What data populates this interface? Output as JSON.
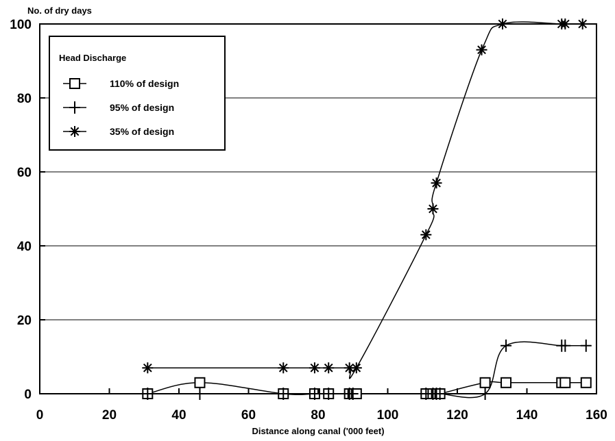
{
  "chart_data": {
    "type": "line",
    "title": "",
    "ylabel": "No. of dry days",
    "xlabel": "Distance along canal ('000 feet)",
    "xlim": [
      0,
      160
    ],
    "ylim": [
      0,
      100
    ],
    "x_ticks": [
      "0",
      "20",
      "40",
      "60",
      "80",
      "100",
      "120",
      "140",
      "160"
    ],
    "y_ticks": [
      "0",
      "20",
      "40",
      "60",
      "80",
      "100"
    ],
    "grid": "horizontal",
    "legend": {
      "title": "Head Discharge",
      "placement": "top-left"
    },
    "series": [
      {
        "name": "110% of design",
        "marker": "square",
        "points": [
          [
            31,
            0
          ],
          [
            46,
            3
          ],
          [
            70,
            0
          ],
          [
            79,
            0
          ],
          [
            83,
            0
          ],
          [
            89,
            0
          ],
          [
            90,
            0
          ],
          [
            91,
            0
          ],
          [
            111,
            0
          ],
          [
            113,
            0
          ],
          [
            114,
            0
          ],
          [
            115,
            0
          ],
          [
            128,
            3
          ],
          [
            134,
            3
          ],
          [
            150,
            3
          ],
          [
            151,
            3
          ],
          [
            157,
            3
          ]
        ]
      },
      {
        "name": "95% of design",
        "marker": "plus",
        "points": [
          [
            31,
            0
          ],
          [
            46,
            0
          ],
          [
            70,
            0
          ],
          [
            79,
            0
          ],
          [
            83,
            0
          ],
          [
            89,
            0
          ],
          [
            90,
            0
          ],
          [
            111,
            0
          ],
          [
            113,
            0
          ],
          [
            114,
            0
          ],
          [
            115,
            0
          ],
          [
            128,
            0
          ],
          [
            134,
            13
          ],
          [
            150,
            13
          ],
          [
            151,
            13
          ],
          [
            157,
            13
          ]
        ]
      },
      {
        "name": "35% of design",
        "marker": "asterisk",
        "points": [
          [
            31,
            7
          ],
          [
            70,
            7
          ],
          [
            79,
            7
          ],
          [
            83,
            7
          ],
          [
            89,
            7
          ],
          [
            91,
            7
          ],
          [
            111,
            43
          ],
          [
            113,
            50
          ],
          [
            114,
            57
          ],
          [
            127,
            93
          ],
          [
            133,
            100
          ],
          [
            150,
            100
          ],
          [
            151,
            100
          ],
          [
            156,
            100
          ]
        ]
      }
    ]
  }
}
